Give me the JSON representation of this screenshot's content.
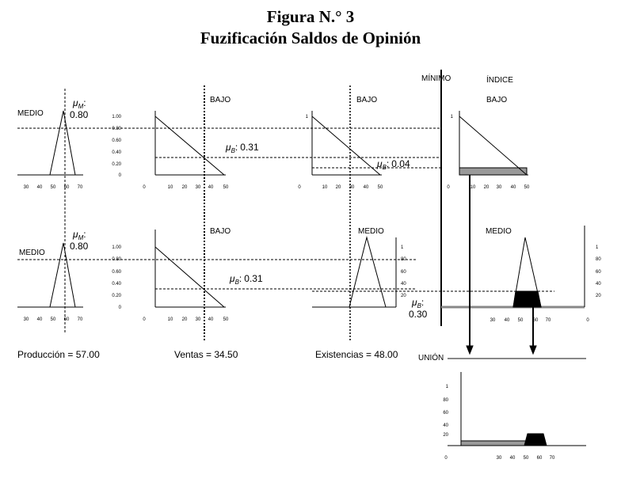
{
  "title": "Figura N.° 3",
  "subtitle": "Fuzificación Saldos de Opinión",
  "header": {
    "minimo": "MÍNIMO",
    "indice": "ÍNDICE"
  },
  "rows": [
    {
      "labels": [
        "MEDIO",
        "BAJO",
        "BAJO",
        "BAJO"
      ],
      "mu": [
        {
          "symbol": "μ",
          "sub": "M",
          "sep": ":",
          "value": "0.80"
        },
        {
          "symbol": "μ",
          "sub": "B",
          "sep": ":",
          "value": "0.31"
        },
        {
          "symbol": "μ",
          "sub": "B",
          "sep": ":",
          "value": "0.04"
        }
      ]
    },
    {
      "labels": [
        "MEDIO",
        "BAJO",
        "MEDIO",
        "MEDIO"
      ],
      "mu": [
        {
          "symbol": "μ",
          "sub": "M",
          "sep": ":",
          "value": "0.80"
        },
        {
          "symbol": "μ",
          "sub": "B",
          "sep": ":",
          "value": "0.31"
        },
        {
          "symbol": "μ",
          "sub": "B",
          "sep": ":",
          "value": "0.30"
        }
      ]
    }
  ],
  "ticks": {
    "medio_x": [
      "30",
      "40",
      "50",
      "60",
      "70"
    ],
    "bajo_x": [
      "0",
      "10",
      "20",
      "30",
      "40",
      "50"
    ],
    "bajo_y": [
      "1.00",
      "0.80",
      "0.60",
      "0.40",
      "0.20",
      "0"
    ],
    "indice_bajo_y": [
      "1"
    ],
    "medio_y": [
      "1",
      "80",
      "60",
      "40",
      "20"
    ],
    "zero": "0"
  },
  "inputs": [
    "Producción = 57.00",
    "Ventas = 34.50",
    "Existencias = 48.00"
  ],
  "union": {
    "label": "UNIÓN"
  }
}
